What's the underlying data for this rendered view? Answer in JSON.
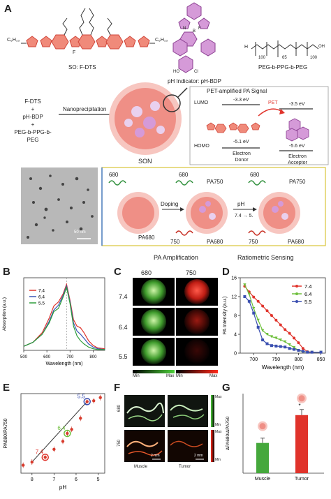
{
  "panels": {
    "A": "A",
    "B": "B",
    "C": "C",
    "D": "D",
    "E": "E",
    "F": "F",
    "G": "G"
  },
  "panelA": {
    "formula_left": "C₆H₁₃",
    "formula_right": "C₆H₁₃",
    "fluorine_label": "F",
    "dts_caption": "SO: F-DTS",
    "bdp_caption": "pH Indicator: pH-BDP",
    "bdp_groups": {
      "ho": "HO",
      "cl": "Cl",
      "n": "N",
      "b": "B",
      "f": "F"
    },
    "peg_formula": "H",
    "peg_subs": [
      "100",
      "65",
      "100"
    ],
    "peg_oh": "OH",
    "peg_caption": "PEG-b-PPG-b-PEG",
    "components": [
      "F-DTS",
      "+",
      "pH-BDP",
      "+",
      "PEG-b-PPG-b-PEG"
    ],
    "arrow_label": "Nanoprecipitation",
    "son_label": "SON",
    "pet_title": "PET-amplified PA Signal",
    "lumo": "LUMO",
    "homo": "HOMO",
    "e_donor_lumo": "-3.3 eV",
    "e_donor_homo": "-5.1 eV",
    "e_acc_lumo": "-3.5 eV",
    "e_acc_homo": "-5.6 eV",
    "pet": "PET",
    "donor": [
      "Electron",
      "Donor"
    ],
    "acceptor": [
      "Electron",
      "Acceptor"
    ],
    "tem_scale": "50 nm",
    "wl_680": "680",
    "wl_750": "750",
    "pa750": "PA750",
    "pa680": "PA680",
    "doping": "Doping",
    "ph": "pH",
    "ph_change": "7.4 → 5.",
    "caption_left": "PA Amplification",
    "caption_right": "Ratiometric Sensing"
  },
  "panelC": {
    "cols": [
      "680",
      "750"
    ],
    "rows": [
      "7.4",
      "6.4",
      "5.5"
    ],
    "scale_min": "Min",
    "scale_max": "Max"
  },
  "panelF": {
    "row_labels": [
      "680",
      "750"
    ],
    "col_labels": [
      "Muscle",
      "Tumor"
    ],
    "scale_top": "Max",
    "scale_bottom": "Min",
    "scale_bar": "2 mm"
  },
  "chart_data": [
    {
      "panel": "B",
      "type": "line",
      "xlabel": "Wavelength (nm)",
      "ylabel": "Absorption (a.u.)",
      "xlim": [
        500,
        850
      ],
      "xticks": [
        500,
        600,
        700,
        800
      ],
      "legend": [
        "7.4",
        "6.4",
        "5.5"
      ],
      "colors": [
        "#e0332b",
        "#3a56b5",
        "#2e9e3a"
      ],
      "series": [
        {
          "name": "7.4",
          "x": [
            500,
            540,
            580,
            610,
            630,
            650,
            670,
            685,
            700,
            715,
            730,
            745,
            760,
            780,
            800,
            820,
            850
          ],
          "y": [
            0.05,
            0.1,
            0.22,
            0.4,
            0.55,
            0.6,
            0.7,
            0.82,
            0.62,
            0.38,
            0.3,
            0.28,
            0.22,
            0.12,
            0.06,
            0.03,
            0.02
          ]
        },
        {
          "name": "6.4",
          "x": [
            500,
            540,
            580,
            610,
            630,
            650,
            670,
            685,
            700,
            715,
            730,
            745,
            760,
            780,
            800,
            820,
            850
          ],
          "y": [
            0.05,
            0.1,
            0.2,
            0.36,
            0.5,
            0.56,
            0.68,
            0.8,
            0.6,
            0.34,
            0.24,
            0.2,
            0.15,
            0.08,
            0.04,
            0.02,
            0.01
          ]
        },
        {
          "name": "5.5",
          "x": [
            500,
            540,
            580,
            610,
            630,
            650,
            670,
            685,
            700,
            715,
            730,
            745,
            760,
            780,
            800,
            820,
            850
          ],
          "y": [
            0.05,
            0.1,
            0.2,
            0.34,
            0.48,
            0.52,
            0.66,
            0.78,
            0.58,
            0.3,
            0.18,
            0.12,
            0.08,
            0.04,
            0.02,
            0.01,
            0.01
          ]
        }
      ]
    },
    {
      "panel": "D",
      "type": "line",
      "xlabel": "Wavelength (nm)",
      "ylabel": "PA Intensity (a.u.)",
      "xlim": [
        670,
        860
      ],
      "ylim": [
        0,
        16
      ],
      "xticks": [
        700,
        750,
        800,
        850
      ],
      "yticks": [
        0,
        4,
        8,
        12,
        16
      ],
      "legend": [
        "7.4",
        "6.4",
        "5.5"
      ],
      "colors": [
        "#e0332b",
        "#6dbf3b",
        "#3a4fb0"
      ],
      "series": [
        {
          "name": "7.4",
          "x": [
            680,
            690,
            700,
            710,
            720,
            730,
            740,
            750,
            760,
            770,
            780,
            790,
            800,
            810,
            820,
            830,
            850
          ],
          "y": [
            14.2,
            13.0,
            11.9,
            11.0,
            10.0,
            9.0,
            8.0,
            7.0,
            6.0,
            5.0,
            4.2,
            3.2,
            2.2,
            1.0,
            0.3,
            0.2,
            0.2
          ]
        },
        {
          "name": "6.4",
          "x": [
            680,
            690,
            700,
            710,
            720,
            730,
            740,
            750,
            760,
            770,
            780,
            790,
            800,
            810,
            820,
            830,
            850
          ],
          "y": [
            14.5,
            12.5,
            9.5,
            7.0,
            4.8,
            4.0,
            3.5,
            3.2,
            2.8,
            2.4,
            1.8,
            1.2,
            0.6,
            0.3,
            0.2,
            0.2,
            0.2
          ]
        },
        {
          "name": "5.5",
          "x": [
            680,
            690,
            700,
            710,
            720,
            730,
            740,
            750,
            760,
            770,
            780,
            790,
            800,
            810,
            820,
            830,
            850
          ],
          "y": [
            12.0,
            11.0,
            8.5,
            5.5,
            2.8,
            2.0,
            1.6,
            1.5,
            1.4,
            1.3,
            1.0,
            0.8,
            0.6,
            0.4,
            0.2,
            0.2,
            0.2
          ]
        }
      ]
    },
    {
      "panel": "E",
      "type": "scatter",
      "xlabel": "pH",
      "ylabel": "PA680/PA750",
      "xlim": [
        8.5,
        4.7
      ],
      "ylim": [
        1,
        11
      ],
      "xticks": [
        8,
        7,
        6,
        5
      ],
      "points": [
        {
          "x": 8.4,
          "y": 2.0
        },
        {
          "x": 8.0,
          "y": 2.4
        },
        {
          "x": 7.4,
          "y": 3.0
        },
        {
          "x": 7.0,
          "y": 4.0
        },
        {
          "x": 6.6,
          "y": 5.0
        },
        {
          "x": 6.4,
          "y": 6.0
        },
        {
          "x": 6.2,
          "y": 6.5
        },
        {
          "x": 5.8,
          "y": 7.9
        },
        {
          "x": 5.5,
          "y": 10.0
        },
        {
          "x": 5.2,
          "y": 10.1
        },
        {
          "x": 4.9,
          "y": 10.5
        }
      ],
      "highlights": [
        {
          "label": "7.4",
          "x": 7.4,
          "y": 3.0,
          "color": "#e0332b"
        },
        {
          "label": "6.4",
          "x": 6.4,
          "y": 6.0,
          "color": "#6dbf3b"
        },
        {
          "label": "5.5",
          "x": 5.5,
          "y": 10.0,
          "color": "#3a4fb0"
        }
      ],
      "fit": {
        "x": [
          8.0,
          5.5
        ],
        "y": [
          2.4,
          10.0
        ]
      }
    },
    {
      "panel": "G",
      "type": "bar",
      "categories": [
        "Muscle",
        "Tumor"
      ],
      "values": [
        3.8,
        7.3
      ],
      "errors": [
        0.6,
        0.7
      ],
      "colors": [
        "#45a83c",
        "#e0332b"
      ],
      "ylabel": "ΔPA680/ΔPA750",
      "ylim": [
        0,
        10
      ]
    }
  ]
}
